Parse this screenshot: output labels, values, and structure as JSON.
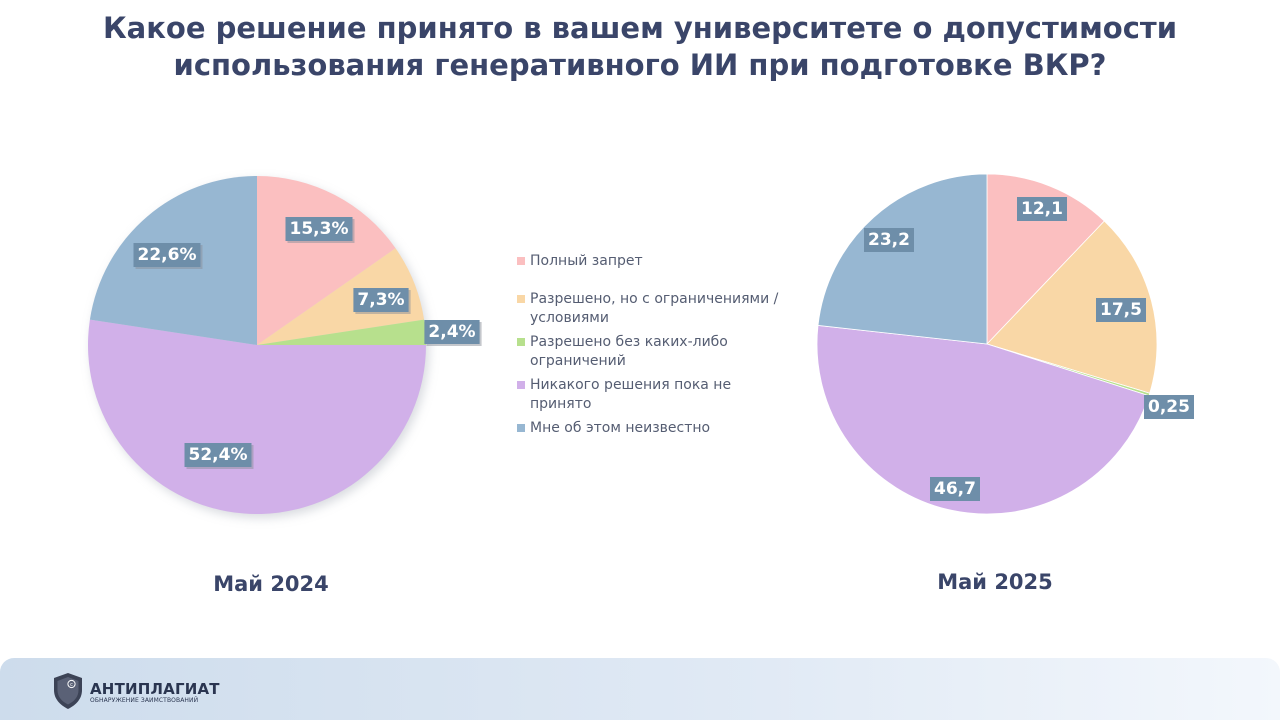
{
  "title_lines": [
    "Какое решение принято в вашем университете о допустимости",
    "использования генеративного ИИ при подготовке ВКР?"
  ],
  "legend": [
    {
      "label": "Полный запрет",
      "color": "#fbbfc0"
    },
    {
      "label": "Разрешено, но с ограничениями / условиями",
      "color": "#f9d7a6"
    },
    {
      "label": "Разрешено без каких-либо ограничений",
      "color": "#b7e08d"
    },
    {
      "label": "Никакого решения пока не принято",
      "color": "#d1b0e9"
    },
    {
      "label": "Мне об этом неизвестно",
      "color": "#97b7d2"
    }
  ],
  "label_box_color": "#6e8ea9",
  "chart_data": [
    {
      "type": "pie",
      "title": "Май 2024",
      "categories": [
        "Полный запрет",
        "Разрешено, но с ограничениями / условиями",
        "Разрешено без каких-либо ограничений",
        "Никакого решения пока не принято",
        "Мне об этом неизвестно"
      ],
      "values": [
        15.3,
        7.3,
        2.4,
        52.4,
        22.6
      ],
      "data_labels": [
        "15,3%",
        "7,3%",
        "2,4%",
        "52,4%",
        "22,6%"
      ]
    },
    {
      "type": "pie",
      "title": "Май 2025",
      "categories": [
        "Полный запрет",
        "Разрешено, но с ограничениями / условиями",
        "Разрешено без каких-либо ограничений",
        "Никакого решения пока не принято",
        "Мне об этом неизвестно"
      ],
      "values": [
        12.1,
        17.5,
        0.25,
        46.7,
        23.2
      ],
      "data_labels": [
        "12,1",
        "17,5",
        "0,25",
        "46,7",
        "23,2"
      ]
    }
  ],
  "footer": {
    "brand": "АНТИПЛАГИАТ",
    "tagline": "ОБНАРУЖЕНИЕ ЗАИМСТВОВАНИЙ",
    "logo_icon": "shield-copyright-icon"
  }
}
